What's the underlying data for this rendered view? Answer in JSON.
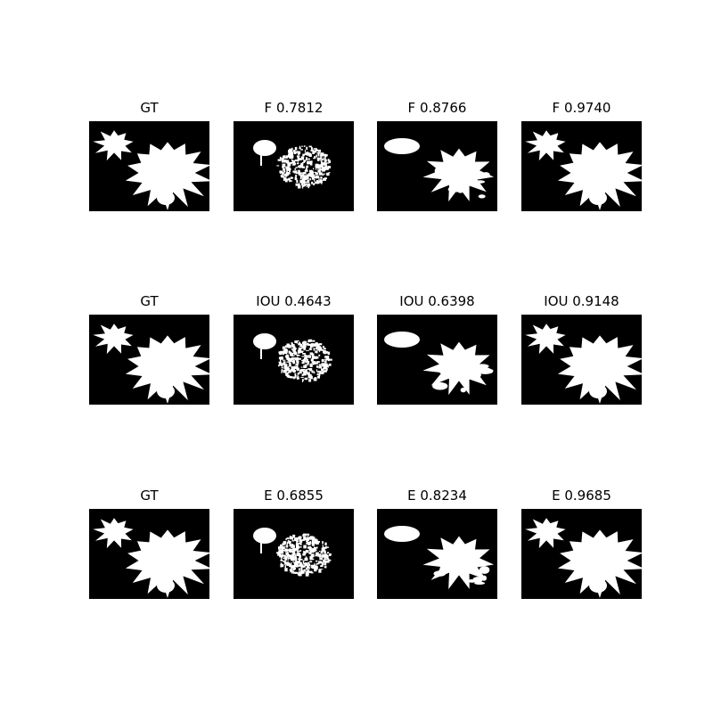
{
  "figure": {
    "rows": [
      {
        "metric": "F",
        "titles": [
          "GT",
          "F 0.7812",
          "F 0.8766",
          "F 0.9740"
        ]
      },
      {
        "metric": "IOU",
        "titles": [
          "GT",
          "IOU 0.4643",
          "IOU 0.6398",
          "IOU 0.9148"
        ]
      },
      {
        "metric": "E",
        "titles": [
          "GT",
          "E 0.6855",
          "E 0.8234",
          "E 0.9685"
        ]
      }
    ],
    "colors": {
      "background": "#000000",
      "mask": "#ffffff"
    }
  }
}
